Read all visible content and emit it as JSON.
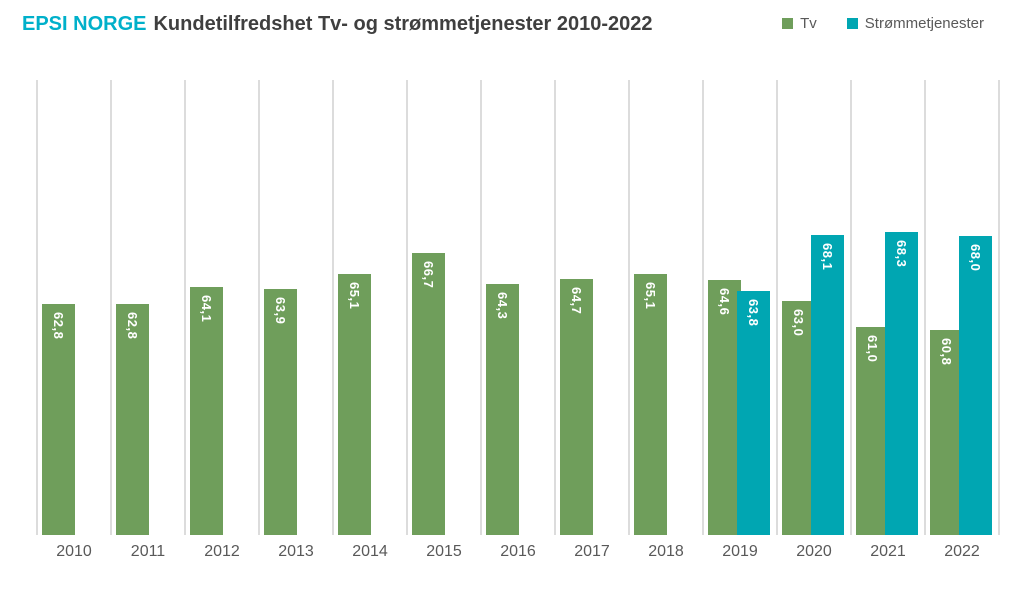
{
  "header": {
    "brand": "EPSI NORGE",
    "brand_color": "#00B0CA",
    "title": "Kundetilfredshet Tv- og strømmetjenester 2010-2022",
    "title_color": "#3F3F3F"
  },
  "legend": [
    {
      "label": "Tv",
      "color": "#6F9E5B"
    },
    {
      "label": "Strømmetjenester",
      "color": "#00A6B2"
    }
  ],
  "chart_data": {
    "type": "bar",
    "title": "EPSI NORGE Kundetilfredshet Tv- og strømmetjenester 2010-2022",
    "categories": [
      "2010",
      "2011",
      "2012",
      "2013",
      "2014",
      "2015",
      "2016",
      "2017",
      "2018",
      "2019",
      "2020",
      "2021",
      "2022"
    ],
    "series": [
      {
        "name": "Tv",
        "color": "#6F9E5B",
        "values": [
          62.8,
          62.8,
          64.1,
          63.9,
          65.1,
          66.7,
          64.3,
          64.7,
          65.1,
          64.6,
          63.0,
          61.0,
          60.8
        ]
      },
      {
        "name": "Strømmetjenester",
        "color": "#00A6B2",
        "values": [
          null,
          null,
          null,
          null,
          null,
          null,
          null,
          null,
          null,
          63.8,
          68.1,
          68.3,
          68.0
        ]
      }
    ],
    "value_labels": [
      "62,8",
      "62,8",
      "64,1",
      "63,9",
      "65,1",
      "66,7",
      "64,3",
      "64,7",
      "65,1",
      "64,6",
      "63,8",
      "63,0",
      "68,1",
      "61,0",
      "68,3",
      "60,8",
      "68,0"
    ],
    "value_label_style": "inside-end, rotated 90deg clockwise, white bold",
    "decimal_separator": ",",
    "xlabel": "",
    "ylabel": "",
    "ylim": [
      45,
      80
    ],
    "y_axis_visible": false,
    "gridlines": "vertical category separators, light gray",
    "legend_position": "top-right"
  }
}
